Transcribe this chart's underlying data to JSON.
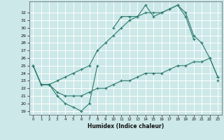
{
  "xlabel": "Humidex (Indice chaleur)",
  "bg_color": "#cce8e8",
  "line_color": "#2d7b6e",
  "grid_color": "#ffffff",
  "xlim": [
    -0.5,
    23.5
  ],
  "ylim": [
    18.5,
    33.5
  ],
  "xticks": [
    0,
    1,
    2,
    3,
    4,
    5,
    6,
    7,
    8,
    9,
    10,
    11,
    12,
    13,
    14,
    15,
    16,
    17,
    18,
    19,
    20,
    21,
    22,
    23
  ],
  "yticks": [
    19,
    20,
    21,
    22,
    23,
    24,
    25,
    26,
    27,
    28,
    29,
    30,
    31,
    32
  ],
  "series1_segments": [
    {
      "x": [
        0,
        1,
        2,
        3,
        4,
        5,
        6,
        7,
        8
      ],
      "y": [
        25.0,
        22.5,
        22.5,
        21.0,
        20.0,
        19.5,
        19.0,
        20.0,
        25.0
      ]
    },
    {
      "x": [
        10,
        11,
        12,
        13,
        14,
        15,
        16,
        17,
        18,
        19,
        20
      ],
      "y": [
        30.0,
        31.5,
        31.5,
        31.5,
        33.0,
        31.5,
        32.0,
        32.5,
        33.0,
        31.5,
        28.5
      ]
    },
    {
      "x": [
        23
      ],
      "y": [
        23.0
      ]
    }
  ],
  "series2": {
    "x": [
      0,
      1,
      2,
      3,
      4,
      5,
      6,
      7,
      8,
      9,
      10,
      11,
      12,
      13,
      14,
      15,
      16,
      17,
      18,
      19,
      20,
      21,
      22,
      23
    ],
    "y": [
      25.0,
      22.5,
      22.5,
      23.0,
      23.5,
      24.0,
      24.5,
      25.0,
      27.0,
      28.0,
      29.0,
      30.0,
      31.0,
      31.5,
      32.0,
      32.0,
      32.0,
      32.5,
      33.0,
      32.0,
      29.0,
      28.0,
      26.0,
      23.5
    ]
  },
  "series3": {
    "x": [
      0,
      1,
      2,
      3,
      4,
      5,
      6,
      7,
      8,
      9,
      10,
      11,
      12,
      13,
      14,
      15,
      16,
      17,
      18,
      19,
      20,
      21,
      22,
      23
    ],
    "y": [
      25.0,
      22.5,
      22.5,
      21.5,
      21.0,
      21.0,
      21.0,
      21.5,
      22.0,
      22.0,
      22.5,
      23.0,
      23.0,
      23.5,
      24.0,
      24.0,
      24.0,
      24.5,
      25.0,
      25.0,
      25.5,
      25.5,
      26.0,
      23.5
    ]
  }
}
